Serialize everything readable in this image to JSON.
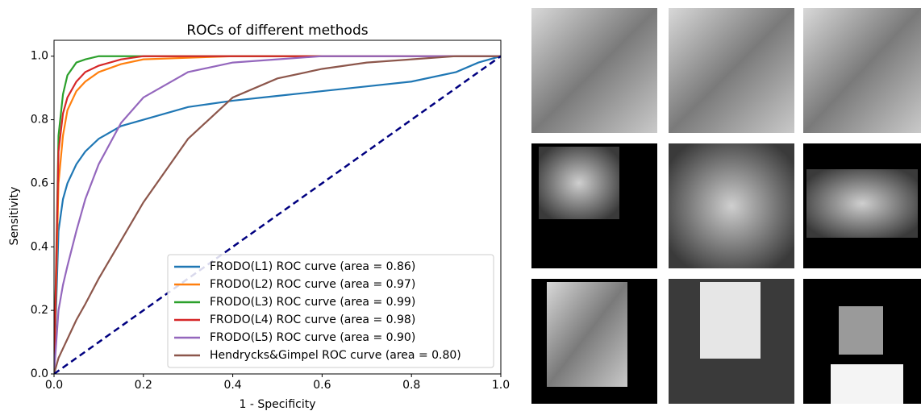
{
  "chart_data": {
    "type": "line",
    "title": "ROCs of different methods",
    "xlabel": "1 - Specificity",
    "ylabel": "Sensitivity",
    "x": [
      0,
      0.01,
      0.02,
      0.03,
      0.05,
      0.07,
      0.1,
      0.15,
      0.2,
      0.3,
      0.4,
      0.5,
      0.6,
      0.7,
      0.8,
      0.9,
      0.95,
      1.0
    ],
    "series": [
      {
        "name": "FRODO(L1) ROC curve (area = 0.86)",
        "color": "#1f77b4",
        "values": [
          0,
          0.45,
          0.55,
          0.6,
          0.66,
          0.7,
          0.74,
          0.78,
          0.8,
          0.84,
          0.86,
          0.875,
          0.89,
          0.905,
          0.92,
          0.95,
          0.98,
          1.0
        ]
      },
      {
        "name": "FRODO(L2) ROC curve (area = 0.97)",
        "color": "#ff7f0e",
        "values": [
          0,
          0.6,
          0.75,
          0.83,
          0.89,
          0.92,
          0.95,
          0.975,
          0.99,
          0.995,
          1.0,
          1.0,
          1.0,
          1.0,
          1.0,
          1.0,
          1.0,
          1.0
        ]
      },
      {
        "name": "FRODO(L3) ROC curve (area = 0.99)",
        "color": "#2ca02c",
        "values": [
          0,
          0.75,
          0.88,
          0.94,
          0.98,
          0.99,
          1.0,
          1.0,
          1.0,
          1.0,
          1.0,
          1.0,
          1.0,
          1.0,
          1.0,
          1.0,
          1.0,
          1.0
        ]
      },
      {
        "name": "FRODO(L4) ROC curve (area = 0.98)",
        "color": "#d62728",
        "values": [
          0,
          0.7,
          0.82,
          0.87,
          0.92,
          0.95,
          0.97,
          0.99,
          1.0,
          1.0,
          1.0,
          1.0,
          1.0,
          1.0,
          1.0,
          1.0,
          1.0,
          1.0
        ]
      },
      {
        "name": "FRODO(L5) ROC curve (area = 0.90)",
        "color": "#9467bd",
        "values": [
          0,
          0.2,
          0.28,
          0.34,
          0.45,
          0.55,
          0.66,
          0.79,
          0.87,
          0.95,
          0.98,
          0.99,
          1.0,
          1.0,
          1.0,
          1.0,
          1.0,
          1.0
        ]
      },
      {
        "name": "Hendrycks&Gimpel ROC curve (area = 0.80)",
        "color": "#8c564b",
        "values": [
          0,
          0.05,
          0.08,
          0.11,
          0.17,
          0.22,
          0.3,
          0.42,
          0.54,
          0.74,
          0.87,
          0.93,
          0.96,
          0.98,
          0.99,
          1.0,
          1.0,
          1.0
        ]
      }
    ],
    "reference_line": {
      "x": [
        0,
        1
      ],
      "values": [
        0,
        1
      ],
      "color": "#000080",
      "dashed": true
    },
    "xlim": [
      0,
      1
    ],
    "ylim": [
      0,
      1.05
    ],
    "xticks": [
      {
        "value": 0,
        "label": "0.0"
      },
      {
        "value": 0.2,
        "label": "0.2"
      },
      {
        "value": 0.4,
        "label": "0.4"
      },
      {
        "value": 0.6,
        "label": "0.6"
      },
      {
        "value": 0.8,
        "label": "0.8"
      },
      {
        "value": 1,
        "label": "1.0"
      }
    ],
    "yticks": [
      {
        "value": 0,
        "label": "0.0"
      },
      {
        "value": 0.2,
        "label": "0.2"
      },
      {
        "value": 0.4,
        "label": "0.4"
      },
      {
        "value": 0.6,
        "label": "0.6"
      },
      {
        "value": 0.8,
        "label": "0.8"
      },
      {
        "value": 1,
        "label": "1.0"
      }
    ],
    "grid": false,
    "legend": "lower right"
  }
}
